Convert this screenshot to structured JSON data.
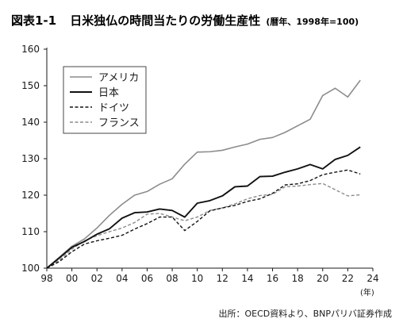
{
  "figure": {
    "label": "図表1-1",
    "title": "日米独仏の時間当たりの労働生産性",
    "note": "(暦年、1998年=100)",
    "source": "出所：OECD資料より、BNPパリバ証券作成",
    "x_unit": "(年)"
  },
  "chart_data": {
    "type": "line",
    "title": "日米独仏の時間当たりの労働生産性(暦年、1998年=100)",
    "xlabel": "(年)",
    "ylabel": "",
    "xlim": [
      1998,
      2024
    ],
    "ylim": [
      100,
      160
    ],
    "yticks": [
      100,
      110,
      120,
      130,
      140,
      150,
      160
    ],
    "xticks": [
      1998,
      2000,
      2002,
      2004,
      2006,
      2008,
      2010,
      2012,
      2014,
      2016,
      2018,
      2020,
      2022,
      2024
    ],
    "xtick_labels": [
      "98",
      "00",
      "02",
      "04",
      "06",
      "08",
      "10",
      "12",
      "14",
      "16",
      "18",
      "20",
      "22",
      "24"
    ],
    "grid": false,
    "legend_position": "top-left",
    "x": [
      1998,
      1999,
      2000,
      2001,
      2002,
      2003,
      2004,
      2005,
      2006,
      2007,
      2008,
      2009,
      2010,
      2011,
      2012,
      2013,
      2014,
      2015,
      2016,
      2017,
      2018,
      2019,
      2020,
      2021,
      2022,
      2023
    ],
    "series": [
      {
        "name": "アメリカ",
        "color": "#8c8c8c",
        "dash": "solid",
        "width": 1.6,
        "values": [
          100,
          103,
          106,
          108,
          111,
          114.5,
          117.5,
          120,
          121,
          123,
          124.5,
          128.5,
          131.8,
          131.9,
          132.3,
          133.2,
          134,
          135.3,
          135.8,
          137.2,
          139,
          140.8,
          147.3,
          149.3,
          146.9,
          151.5
        ]
      },
      {
        "name": "日本",
        "color": "#111111",
        "dash": "solid",
        "width": 1.9,
        "values": [
          100,
          102.8,
          105.7,
          107.3,
          109.3,
          110.8,
          113.7,
          115.2,
          115.4,
          116.2,
          115.8,
          114,
          117.8,
          118.5,
          119.8,
          122.3,
          122.5,
          125.1,
          125.2,
          126.3,
          127.2,
          128.4,
          127.2,
          129.8,
          130.9,
          133.2
        ]
      },
      {
        "name": "ドイツ",
        "color": "#111111",
        "dash": "dashed",
        "width": 1.4,
        "values": [
          100,
          101.8,
          104.5,
          106.6,
          107.5,
          108.2,
          109,
          110.7,
          112.2,
          114,
          114,
          110.3,
          112.8,
          115.7,
          116.5,
          117.2,
          118.3,
          119,
          120.5,
          122.8,
          123.1,
          124,
          125.6,
          126.3,
          126.9,
          125.8
        ]
      },
      {
        "name": "フランス",
        "color": "#8c8c8c",
        "dash": "dashed",
        "width": 1.4,
        "values": [
          100,
          102.2,
          105.2,
          107.5,
          108.9,
          110,
          111,
          112.5,
          114.8,
          115,
          114,
          113,
          114,
          115.8,
          116.5,
          117.6,
          119,
          119.9,
          120.2,
          122.3,
          122.5,
          122.9,
          123.2,
          121.5,
          119.8,
          120.1
        ]
      }
    ]
  }
}
